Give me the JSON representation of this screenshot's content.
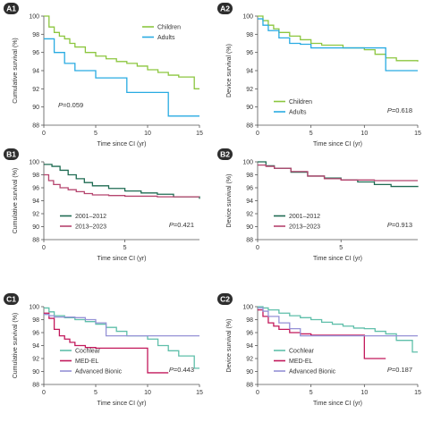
{
  "chart_data": [
    {
      "id": "A1",
      "type": "line",
      "step": true,
      "xlabel": "Time since CI (yr)",
      "ylabel": "Cumulative survival (%)",
      "xlim": [
        0,
        15
      ],
      "ylim": [
        88,
        100
      ],
      "xticks": [
        "0",
        "5",
        "10",
        "15"
      ],
      "xtick_values": [
        0,
        5,
        10,
        15
      ],
      "yticks": [
        "88",
        "90",
        "92",
        "94",
        "96",
        "98",
        "100"
      ],
      "p_prefix": "P",
      "p_value": "=0.059",
      "legend_position": "top-right",
      "series": [
        {
          "name": "Children",
          "color": "#8cc63f",
          "x": [
            0,
            0.5,
            1,
            1.5,
            2,
            2.5,
            3,
            4,
            5,
            6,
            7,
            8,
            9,
            10,
            11,
            12,
            13,
            14.5,
            15
          ],
          "y": [
            100,
            98.8,
            98.2,
            97.8,
            97.5,
            97,
            96.6,
            96,
            95.6,
            95.3,
            95,
            94.8,
            94.5,
            94.1,
            93.8,
            93.5,
            93.3,
            92,
            92
          ]
        },
        {
          "name": "Adults",
          "color": "#29abe2",
          "x": [
            0,
            0.5,
            1,
            2,
            3,
            5,
            6,
            8,
            10,
            12,
            15
          ],
          "y": [
            97.5,
            97.5,
            96,
            94.8,
            94,
            93.2,
            93.2,
            91.6,
            91.6,
            89,
            89
          ]
        }
      ]
    },
    {
      "id": "A2",
      "type": "line",
      "step": true,
      "xlabel": "Time since CI (yr)",
      "ylabel": "Device survival (%)",
      "xlim": [
        0,
        15
      ],
      "ylim": [
        88,
        100
      ],
      "xticks": [
        "0",
        "5",
        "10",
        "15"
      ],
      "xtick_values": [
        0,
        5,
        10,
        15
      ],
      "yticks": [
        "88",
        "90",
        "92",
        "94",
        "96",
        "98",
        "100"
      ],
      "p_prefix": "P",
      "p_value": "=0.618",
      "legend_position": "bottom-left",
      "series": [
        {
          "name": "Children",
          "color": "#8cc63f",
          "x": [
            0,
            0.5,
            1,
            1.5,
            2,
            3,
            4,
            5,
            6,
            8,
            10,
            11,
            12,
            13,
            15
          ],
          "y": [
            100,
            99.5,
            99,
            98.6,
            98.2,
            97.8,
            97.4,
            97,
            96.8,
            96.5,
            96.3,
            95.8,
            95.4,
            95.1,
            95
          ]
        },
        {
          "name": "Adults",
          "color": "#29abe2",
          "x": [
            0,
            0.5,
            1,
            2,
            3,
            4,
            5,
            7,
            9,
            12,
            15
          ],
          "y": [
            99.7,
            99,
            98.4,
            97.6,
            97,
            96.9,
            96.5,
            96.5,
            96.5,
            94,
            94
          ]
        }
      ]
    },
    {
      "id": "B1",
      "type": "line",
      "step": true,
      "xlabel": "Time since CI (yr)",
      "ylabel": "Cumulative survival (%)",
      "xlim": [
        0,
        9.6
      ],
      "ylim": [
        88,
        100
      ],
      "xticks": [
        "0",
        "5"
      ],
      "xtick_values": [
        0,
        5
      ],
      "yticks": [
        "88",
        "90",
        "92",
        "94",
        "96",
        "98",
        "100"
      ],
      "p_prefix": "P",
      "p_value": "=0.421",
      "legend_position": "bottom-left",
      "series": [
        {
          "name": "2001–2012",
          "color": "#1e6b52",
          "x": [
            0,
            0.5,
            1,
            1.5,
            2,
            2.5,
            3,
            4,
            5,
            6,
            7,
            8,
            9.6
          ],
          "y": [
            99.6,
            99.3,
            98.7,
            98,
            97.4,
            96.8,
            96.3,
            95.9,
            95.5,
            95.2,
            95,
            94.6,
            94.3
          ]
        },
        {
          "name": "2013–2023",
          "color": "#b5446e",
          "x": [
            0,
            0.3,
            0.6,
            1,
            1.5,
            2,
            2.5,
            3,
            4,
            5,
            7,
            9.6
          ],
          "y": [
            98,
            97.1,
            96.5,
            96,
            95.7,
            95.4,
            95.1,
            94.9,
            94.8,
            94.7,
            94.6,
            94.6
          ]
        }
      ]
    },
    {
      "id": "B2",
      "type": "line",
      "step": true,
      "xlabel": "Time since CI (yr)",
      "ylabel": "Device survival (%)",
      "xlim": [
        0,
        9.6
      ],
      "ylim": [
        88,
        100
      ],
      "xticks": [
        "0",
        "5"
      ],
      "xtick_values": [
        0,
        5
      ],
      "yticks": [
        "88",
        "90",
        "92",
        "94",
        "96",
        "98",
        "100"
      ],
      "p_prefix": "P",
      "p_value": "=0.913",
      "legend_position": "bottom-left",
      "series": [
        {
          "name": "2001–2012",
          "color": "#1e6b52",
          "x": [
            0,
            0.5,
            1,
            2,
            3,
            4,
            5,
            6,
            7,
            8,
            9.6
          ],
          "y": [
            100,
            99.4,
            99,
            98.4,
            97.8,
            97.5,
            97.2,
            96.9,
            96.5,
            96.2,
            96.1
          ]
        },
        {
          "name": "2013–2023",
          "color": "#b5446e",
          "x": [
            0,
            0.5,
            1,
            2,
            3,
            4,
            5,
            7,
            9.6
          ],
          "y": [
            99.5,
            99.3,
            99,
            98.5,
            97.8,
            97.4,
            97.2,
            97.1,
            97.1
          ]
        }
      ]
    },
    {
      "id": "C1",
      "type": "line",
      "step": true,
      "xlabel": "Time since CI (yr)",
      "ylabel": "Cumulative survival (%)",
      "xlim": [
        0,
        15
      ],
      "ylim": [
        88,
        100
      ],
      "xticks": [
        "0",
        "5",
        "10",
        "15"
      ],
      "xtick_values": [
        0,
        5,
        10,
        15
      ],
      "yticks": [
        "88",
        "90",
        "92",
        "94",
        "96",
        "98",
        "100"
      ],
      "p_prefix": "P",
      "p_value": "=0.443",
      "legend_position": "bottom-left",
      "series": [
        {
          "name": "Cochlear",
          "color": "#5fbfaa",
          "x": [
            0,
            0.5,
            1,
            2,
            3,
            4,
            5,
            6,
            7,
            8,
            10,
            11,
            12,
            13,
            14.5,
            15
          ],
          "y": [
            99.8,
            99.2,
            98.6,
            98.3,
            98,
            97.7,
            97.3,
            96.8,
            96.2,
            95.5,
            95,
            94,
            93.2,
            92.4,
            90.5,
            90.5
          ]
        },
        {
          "name": "MED-EL",
          "color": "#c2185b",
          "x": [
            0,
            0.5,
            1,
            1.5,
            2,
            2.5,
            3,
            4,
            5,
            9.5,
            10,
            12
          ],
          "y": [
            99,
            98.2,
            96.5,
            95.5,
            95,
            94.5,
            94,
            93.7,
            93.6,
            93.6,
            89.8,
            89.8
          ]
        },
        {
          "name": "Advanced Bionic",
          "color": "#9591d6",
          "x": [
            0,
            0.5,
            1,
            2,
            3,
            4,
            5,
            6,
            15
          ],
          "y": [
            98.8,
            98.6,
            98.4,
            98.4,
            98.3,
            98,
            97.5,
            95.5,
            95.5
          ]
        }
      ]
    },
    {
      "id": "C2",
      "type": "line",
      "step": true,
      "xlabel": "Time since CI (yr)",
      "ylabel": "Device survival (%)",
      "xlim": [
        0,
        15
      ],
      "ylim": [
        88,
        100
      ],
      "xticks": [
        "0",
        "5",
        "10",
        "15"
      ],
      "xtick_values": [
        0,
        5,
        10,
        15
      ],
      "yticks": [
        "88",
        "90",
        "92",
        "94",
        "96",
        "98",
        "100"
      ],
      "p_prefix": "P",
      "p_value": "=0.187",
      "legend_position": "bottom-left",
      "series": [
        {
          "name": "Cochlear",
          "color": "#5fbfaa",
          "x": [
            0,
            0.5,
            1,
            2,
            3,
            4,
            5,
            6,
            7,
            8,
            9,
            10,
            11,
            12,
            13,
            14.5,
            15
          ],
          "y": [
            100,
            99.8,
            99.5,
            99,
            98.6,
            98.3,
            98,
            97.6,
            97.3,
            97,
            96.7,
            96.6,
            96.2,
            95.8,
            94.8,
            93,
            93
          ]
        },
        {
          "name": "MED-EL",
          "color": "#c2185b",
          "x": [
            0,
            0.5,
            1,
            1.5,
            2,
            3,
            4,
            5,
            9.5,
            10,
            12
          ],
          "y": [
            99.5,
            98.5,
            97.5,
            97,
            96.5,
            96,
            95.8,
            95.6,
            95.6,
            92,
            92
          ]
        },
        {
          "name": "Advanced Bionic",
          "color": "#9591d6",
          "x": [
            0,
            0.5,
            1,
            2,
            3,
            4,
            15
          ],
          "y": [
            99.8,
            99.3,
            98.5,
            97.5,
            96.6,
            95.5,
            95.5
          ]
        }
      ]
    }
  ]
}
